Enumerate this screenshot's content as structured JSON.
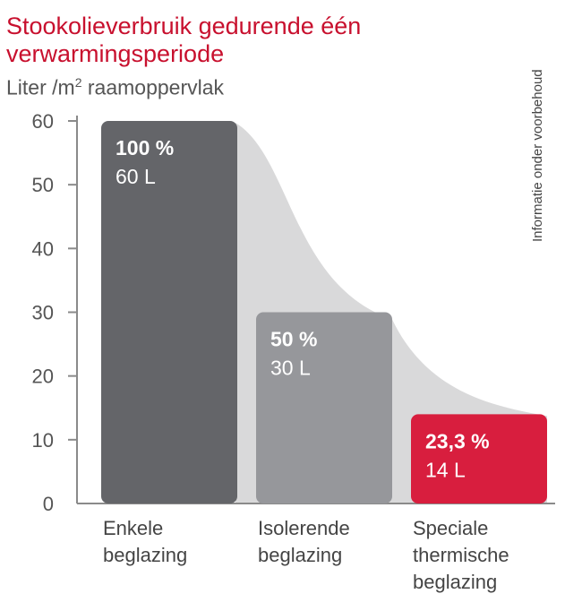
{
  "chart_data": {
    "type": "bar",
    "title_lines": [
      "Stookolieverbruik gedurende één",
      "verwarmingsperiode"
    ],
    "ylabel_prefix": "Liter /m",
    "ylabel_sup": "2",
    "ylabel_suffix": " raamoppervlak",
    "side_note": "Informatie onder voorbehoud",
    "ylim": [
      0,
      60
    ],
    "yticks": [
      "0",
      "10",
      "20",
      "30",
      "40",
      "50",
      "60"
    ],
    "categories": [
      [
        "Enkele",
        "beglazing"
      ],
      [
        "Isolerende",
        "beglazing"
      ],
      [
        "Speciale",
        "thermische",
        "beglazing"
      ]
    ],
    "values": [
      60,
      30,
      14
    ],
    "percent_labels": [
      "100 %",
      "50 %",
      "23,3 %"
    ],
    "value_labels": [
      "60 L",
      "30 L",
      "14 L"
    ],
    "colors": [
      "#646569",
      "#96979b",
      "#d81e3e"
    ],
    "trend_fill_color": "#d9d9da",
    "axis_color": "#8a8a8a"
  }
}
